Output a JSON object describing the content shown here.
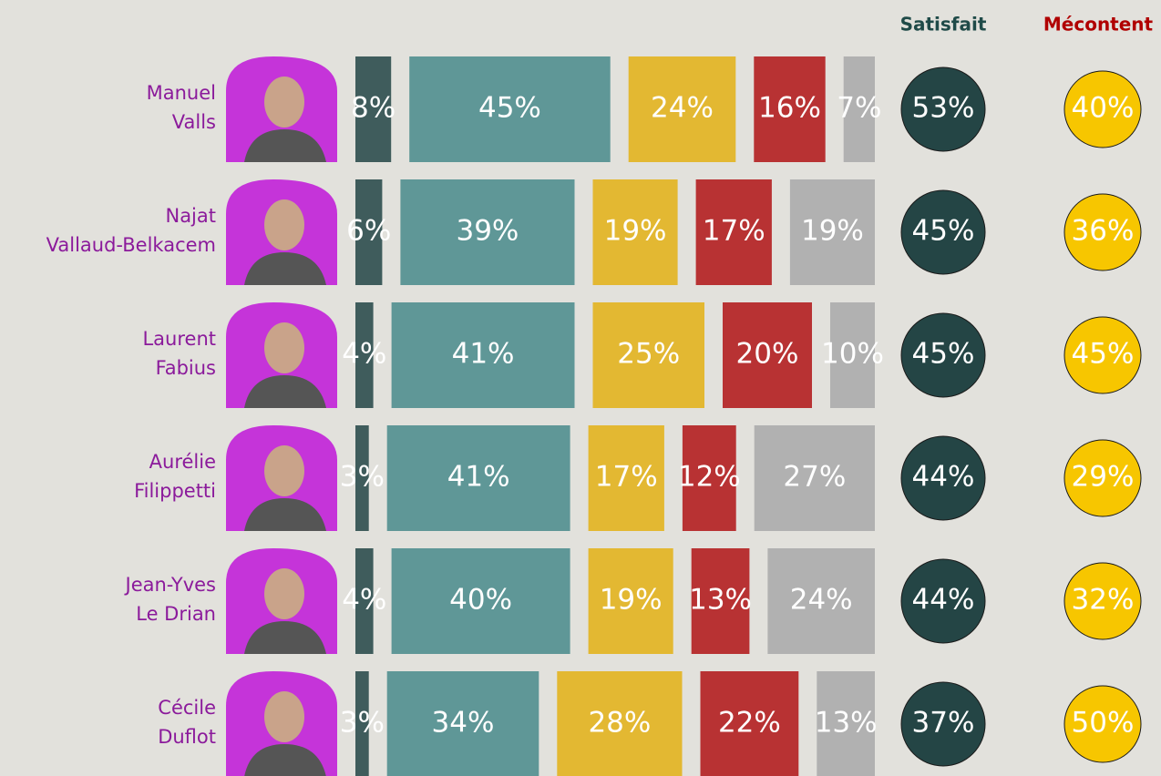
{
  "chart_data": {
    "type": "bar",
    "orientation": "horizontal",
    "categories": [
      [
        "Manuel",
        "Valls"
      ],
      [
        "Najat",
        "Vallaud-Belkacem"
      ],
      [
        "Laurent",
        "Fabius"
      ],
      [
        "Aurélie",
        "Filippetti"
      ],
      [
        "Jean-Yves",
        "Le Drian"
      ],
      [
        "Cécile",
        "Duflot"
      ]
    ],
    "series": [
      {
        "color": "#3f5c5c",
        "values": [
          8,
          6,
          4,
          3,
          4,
          3
        ],
        "value_labels": [
          "8%",
          "6%",
          "4%",
          "3%",
          "4%",
          "3%"
        ]
      },
      {
        "color": "#5f9797",
        "values": [
          45,
          39,
          41,
          41,
          40,
          34
        ],
        "value_labels": [
          "45%",
          "39%",
          "41%",
          "41%",
          "40%",
          "34%"
        ]
      },
      {
        "color": "#e3b832",
        "values": [
          24,
          19,
          25,
          17,
          19,
          28
        ],
        "value_labels": [
          "24%",
          "19%",
          "25%",
          "17%",
          "19%",
          "28%"
        ]
      },
      {
        "color": "#b83233",
        "values": [
          16,
          17,
          20,
          12,
          13,
          22
        ],
        "value_labels": [
          "16%",
          "17%",
          "20%",
          "12%",
          "13%",
          "22%"
        ]
      },
      {
        "color": "#b1b1b1",
        "values": [
          7,
          19,
          10,
          27,
          24,
          13
        ],
        "value_labels": [
          "7%",
          "19%",
          "10%",
          "27%",
          "24%",
          "13%"
        ]
      }
    ],
    "totals": [
      {
        "name": "Satisfait",
        "color": "#244545",
        "text_color": "#ffffff",
        "header_color": "#1f4a48",
        "values": [
          53,
          45,
          45,
          44,
          44,
          37
        ],
        "value_labels": [
          "53%",
          "45%",
          "45%",
          "44%",
          "44%",
          "37%"
        ]
      },
      {
        "name": "Mécontent",
        "color": "#f7c600",
        "text_color": "#c00000",
        "header_color": "#b00000",
        "values": [
          40,
          36,
          45,
          29,
          32,
          50
        ],
        "value_labels": [
          "40%",
          "36%",
          "45%",
          "29%",
          "32%",
          "50%"
        ]
      }
    ]
  }
}
